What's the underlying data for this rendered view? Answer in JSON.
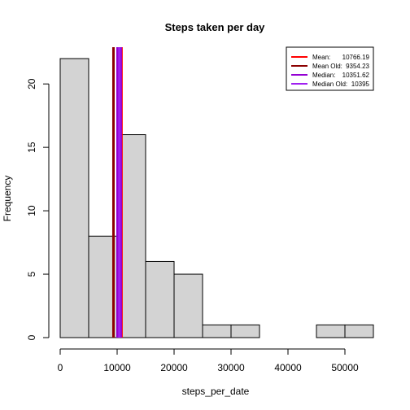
{
  "chart_data": {
    "type": "bar",
    "title": "Steps taken per day",
    "xlabel": "steps_per_date",
    "ylabel": "Frequency",
    "bins": [
      {
        "from": 0,
        "to": 5000,
        "count": 22
      },
      {
        "from": 5000,
        "to": 10000,
        "count": 8
      },
      {
        "from": 10000,
        "to": 15000,
        "count": 16
      },
      {
        "from": 15000,
        "to": 20000,
        "count": 6
      },
      {
        "from": 20000,
        "to": 25000,
        "count": 5
      },
      {
        "from": 25000,
        "to": 30000,
        "count": 1
      },
      {
        "from": 30000,
        "to": 35000,
        "count": 1
      },
      {
        "from": 35000,
        "to": 40000,
        "count": 0
      },
      {
        "from": 40000,
        "to": 45000,
        "count": 0
      },
      {
        "from": 45000,
        "to": 50000,
        "count": 1
      },
      {
        "from": 50000,
        "to": 55000,
        "count": 1
      }
    ],
    "xlim": [
      0,
      55000
    ],
    "ylim": [
      0,
      22
    ],
    "x_ticks": [
      0,
      10000,
      20000,
      30000,
      40000,
      50000
    ],
    "x_tick_labels": [
      "0",
      "10000",
      "20000",
      "30000",
      "40000",
      "50000"
    ],
    "y_ticks": [
      0,
      5,
      10,
      15,
      20
    ],
    "y_tick_labels": [
      "0",
      "5",
      "10",
      "15",
      "20"
    ],
    "grid": false,
    "legend_placement": "top-right",
    "vlines": [
      {
        "label": "Mean:",
        "value_text": "10766.19",
        "x": 10766.19,
        "color": "#ff0000"
      },
      {
        "label": "Mean Old:",
        "value_text": "9354.23",
        "x": 9354.23,
        "color": "#8b0000"
      },
      {
        "label": "Median:",
        "value_text": "10351.62",
        "x": 10351.62,
        "color": "#9400d3"
      },
      {
        "label": "Median Old:",
        "value_text": "10395",
        "x": 10395,
        "color": "#a020f0"
      }
    ]
  }
}
